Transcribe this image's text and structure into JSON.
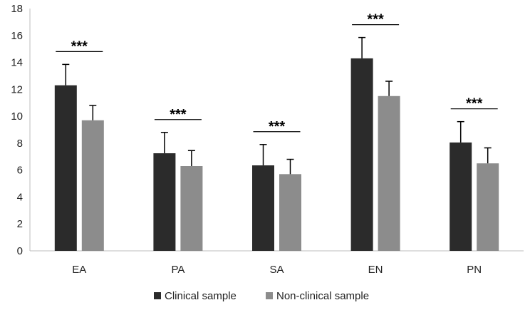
{
  "chart_data": {
    "type": "bar",
    "title": "",
    "xlabel": "",
    "ylabel": "",
    "ylim": [
      0,
      18
    ],
    "yticks": [
      0,
      2,
      4,
      6,
      8,
      10,
      12,
      14,
      16,
      18
    ],
    "categories": [
      "EA",
      "PA",
      "SA",
      "EN",
      "PN"
    ],
    "series": [
      {
        "name": "Clinical sample",
        "color": "#2b2b2b",
        "values": [
          12.3,
          7.25,
          6.35,
          14.3,
          8.05
        ],
        "error": [
          1.55,
          1.55,
          1.55,
          1.55,
          1.55
        ]
      },
      {
        "name": "Non-clinical sample",
        "color": "#8c8c8c",
        "values": [
          9.7,
          6.3,
          5.7,
          11.5,
          6.5
        ],
        "error": [
          1.1,
          1.15,
          1.1,
          1.1,
          1.15
        ]
      }
    ],
    "annotations": [
      {
        "category": "EA",
        "label": "***"
      },
      {
        "category": "PA",
        "label": "***"
      },
      {
        "category": "SA",
        "label": "***"
      },
      {
        "category": "EN",
        "label": "***"
      },
      {
        "category": "PN",
        "label": "***"
      }
    ],
    "legend": "bottom",
    "grid": false
  }
}
